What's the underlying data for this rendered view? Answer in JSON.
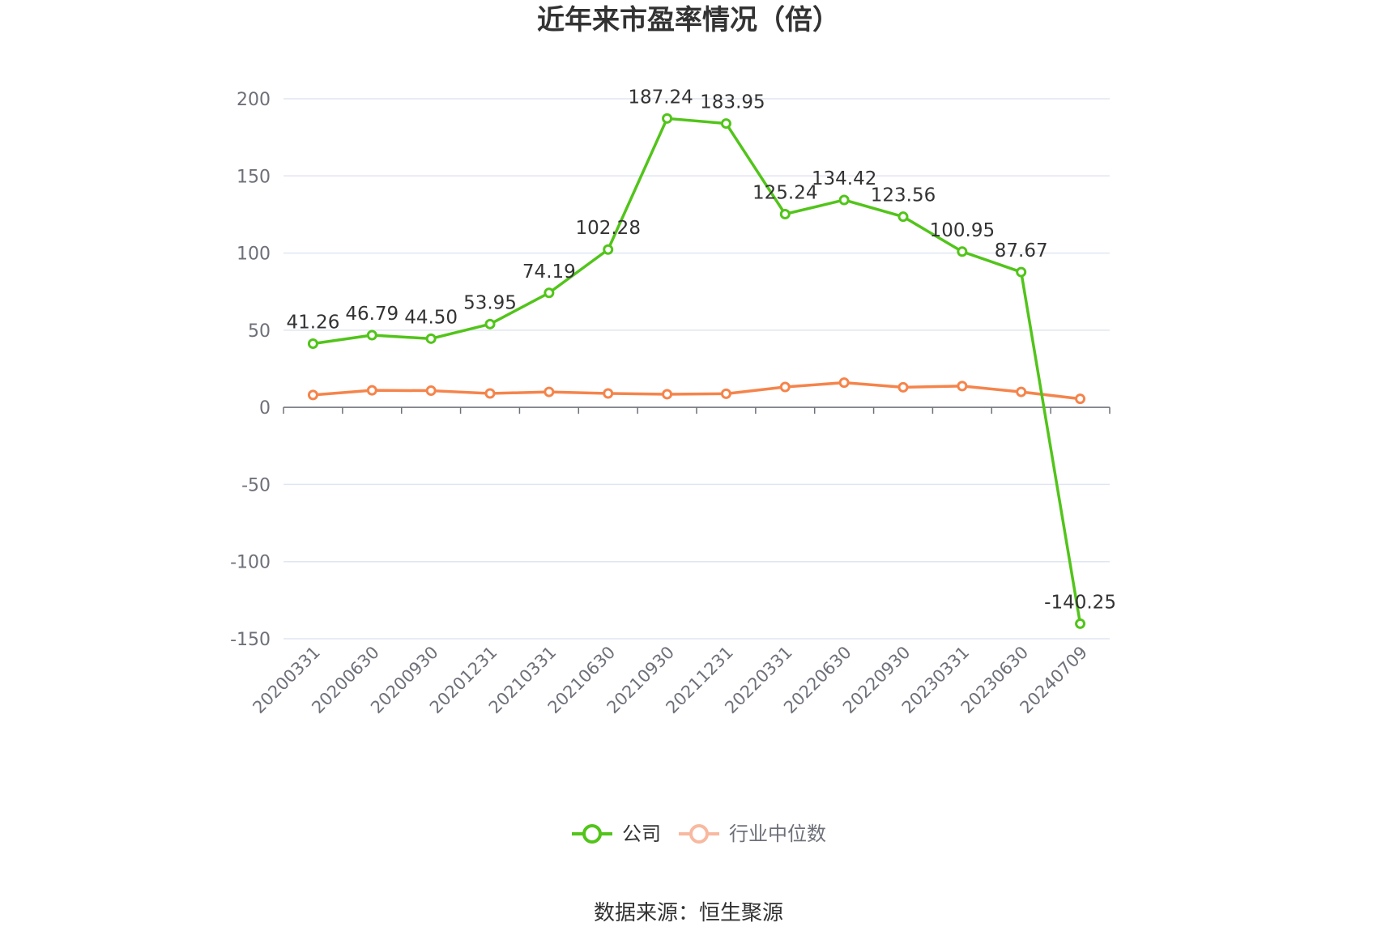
{
  "chart_data": {
    "type": "line",
    "title": "近年来市盈率情况（倍）",
    "x": [
      "20200331",
      "20200630",
      "20200930",
      "20201231",
      "20210331",
      "20210630",
      "20210930",
      "20211231",
      "20220331",
      "20220630",
      "20220930",
      "20230331",
      "20230630",
      "20240709"
    ],
    "ylim": [
      -150,
      200
    ],
    "yticks": [
      200,
      150,
      100,
      50,
      0,
      -50,
      -100,
      -150
    ],
    "grid": true,
    "legend_position": "bottom",
    "series": [
      {
        "name": "公司",
        "color": "#52c41a",
        "values": [
          41.26,
          46.79,
          44.5,
          53.95,
          74.19,
          102.28,
          187.24,
          183.95,
          125.24,
          134.42,
          123.56,
          100.95,
          87.67,
          -140.25
        ],
        "labels": [
          "41.26",
          "46.79",
          "44.50",
          "53.95",
          "74.19",
          "102.28",
          "187.24",
          "183.95",
          "125.24",
          "134.42",
          "123.56",
          "100.95",
          "87.67",
          "-140.25"
        ]
      },
      {
        "name": "行业中位数",
        "color": "#f5844b",
        "legend_color": "#f8b9a0",
        "values": [
          8.0,
          11.0,
          10.8,
          9.0,
          10.0,
          9.0,
          8.5,
          8.8,
          13.2,
          16.0,
          13.0,
          13.8,
          10.0,
          5.5
        ]
      }
    ]
  },
  "source_text": "数据来源：恒生聚源"
}
